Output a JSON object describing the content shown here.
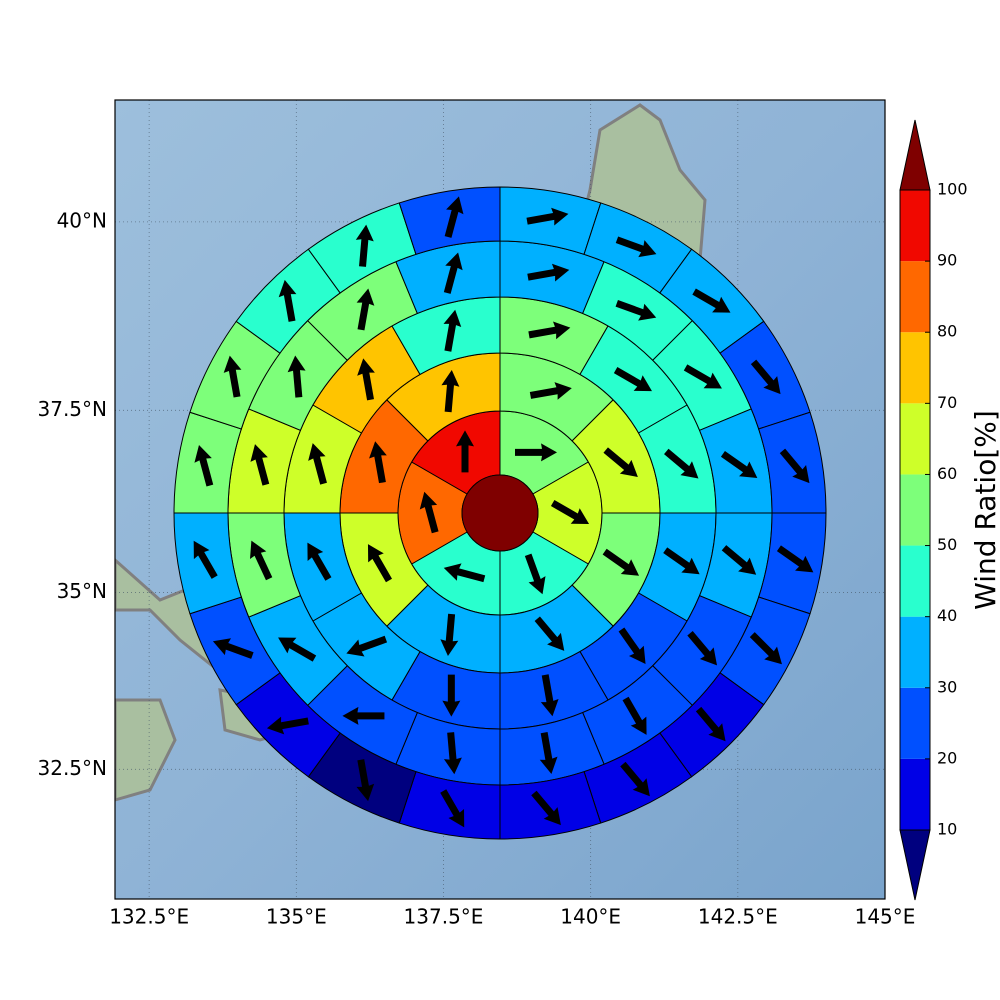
{
  "chart_data": {
    "type": "polar-map",
    "xlim": [
      131.92,
      145
    ],
    "ylim": [
      30.62,
      41.57
    ],
    "xticks": [
      {
        "value": 132.5,
        "label": "132.5°E"
      },
      {
        "value": 135,
        "label": "135°E"
      },
      {
        "value": 137.5,
        "label": "137.5°E"
      },
      {
        "value": 140,
        "label": "140°E"
      },
      {
        "value": 142.5,
        "label": "142.5°E"
      },
      {
        "value": 145,
        "label": "145°E"
      }
    ],
    "yticks": [
      {
        "value": 32.5,
        "label": "32.5°N"
      },
      {
        "value": 35,
        "label": "35°N"
      },
      {
        "value": 37.5,
        "label": "37.5°N"
      },
      {
        "value": 40,
        "label": "40°N"
      }
    ],
    "grid": true,
    "colorbar": {
      "label": "Wind Ratio[%]",
      "ticks": [
        10,
        20,
        30,
        40,
        50,
        60,
        70,
        80,
        90,
        100
      ],
      "colors": [
        "#0000e6",
        "#0050ff",
        "#00b0ff",
        "#29ffce",
        "#7dff7a",
        "#ceff29",
        "#ffc400",
        "#ff6800",
        "#f10800"
      ],
      "under_color": "#00007f",
      "over_color": "#7f0000"
    },
    "center_value": 105,
    "rings": [
      {
        "values": [
          55,
          65,
          45,
          45,
          85,
          95
        ],
        "directions": [
          90,
          120,
          160,
          285,
          345,
          0
        ]
      },
      {
        "values": [
          55,
          65,
          55,
          35,
          35,
          65,
          85,
          75
        ],
        "directions": [
          80,
          130,
          125,
          140,
          185,
          330,
          350,
          5
        ]
      },
      {
        "values": [
          55,
          45,
          45,
          35,
          25,
          25,
          25,
          35,
          35,
          65,
          75,
          45
        ],
        "directions": [
          80,
          120,
          130,
          125,
          145,
          170,
          180,
          250,
          330,
          345,
          350,
          10
        ]
      },
      {
        "values": [
          30,
          45,
          45,
          35,
          35,
          25,
          20,
          20,
          20,
          25,
          35,
          55,
          65,
          55,
          55,
          35
        ],
        "directions": [
          80,
          110,
          120,
          125,
          130,
          140,
          150,
          170,
          175,
          270,
          300,
          335,
          345,
          355,
          10,
          15
        ]
      },
      {
        "values": [
          30,
          30,
          35,
          20,
          20,
          20,
          20,
          15,
          15,
          15,
          12,
          5,
          15,
          20,
          30,
          55,
          55,
          45,
          45,
          25
        ],
        "directions": [
          80,
          110,
          120,
          140,
          140,
          125,
          135,
          140,
          140,
          140,
          150,
          170,
          260,
          290,
          330,
          345,
          350,
          350,
          5,
          15
        ]
      }
    ]
  }
}
